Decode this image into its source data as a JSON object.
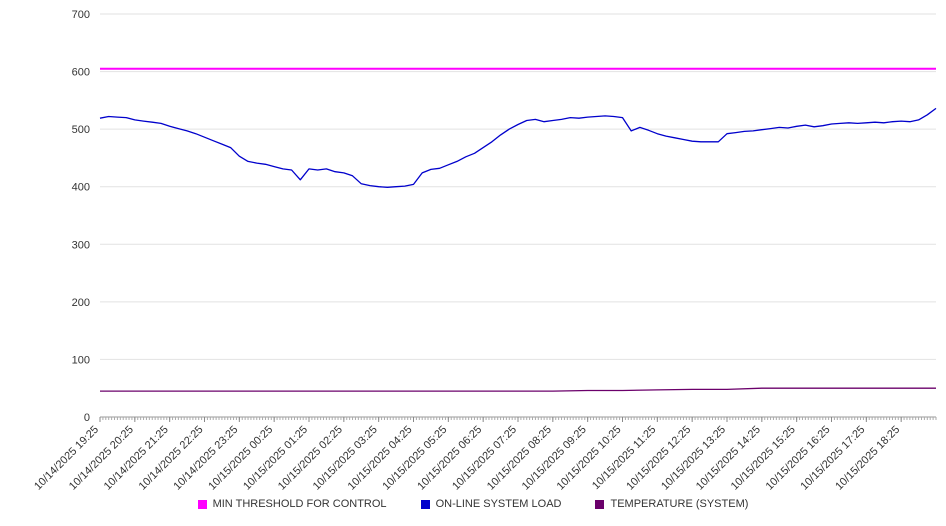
{
  "chart_data": {
    "type": "line",
    "title": "",
    "xlabel": "",
    "ylabel": "",
    "ylim": [
      0,
      700
    ],
    "yticks": [
      0,
      100,
      200,
      300,
      400,
      500,
      600,
      700
    ],
    "grid": true,
    "legend_position": "bottom",
    "x": [
      "10/14/2025 19:25",
      "10/14/2025 20:25",
      "10/14/2025 21:25",
      "10/14/2025 22:25",
      "10/14/2025 23:25",
      "10/15/2025 00:25",
      "10/15/2025 01:25",
      "10/15/2025 02:25",
      "10/15/2025 03:25",
      "10/15/2025 04:25",
      "10/15/2025 05:25",
      "10/15/2025 06:25",
      "10/15/2025 07:25",
      "10/15/2025 08:25",
      "10/15/2025 09:25",
      "10/15/2025 10:25",
      "10/15/2025 11:25",
      "10/15/2025 12:25",
      "10/15/2025 13:25",
      "10/15/2025 14:25",
      "10/15/2025 15:25",
      "10/15/2025 16:25",
      "10/15/2025 17:25",
      "10/15/2025 18:25"
    ],
    "series": [
      {
        "name": "MIN THRESHOLD FOR CONTROL",
        "color": "#ff00ff",
        "width": 2,
        "values": [
          605,
          605
        ]
      },
      {
        "name": "ON-LINE SYSTEM LOAD",
        "color": "#0000cc",
        "width": 1.3,
        "values": [
          519,
          522,
          521,
          520,
          516,
          514,
          512,
          510,
          505,
          501,
          497,
          492,
          486,
          480,
          474,
          468,
          453,
          444,
          441,
          439,
          435,
          431,
          429,
          412,
          431,
          429,
          431,
          426,
          424,
          419,
          405,
          402,
          400,
          399,
          400,
          401,
          404,
          424,
          430,
          432,
          438,
          444,
          452,
          458,
          468,
          478,
          490,
          500,
          508,
          515,
          517,
          513,
          515,
          517,
          520,
          519,
          521,
          522,
          523,
          522,
          520,
          497,
          503,
          498,
          492,
          488,
          485,
          482,
          479,
          478,
          478,
          478,
          492,
          494,
          496,
          497,
          499,
          501,
          503,
          502,
          505,
          507,
          504,
          506,
          509,
          510,
          511,
          510,
          511,
          512,
          511,
          513,
          514,
          513,
          516,
          525,
          536
        ]
      },
      {
        "name": "TEMPERATURE (SYSTEM)",
        "color": "#6b006b",
        "width": 1.3,
        "values": [
          45,
          45,
          45,
          45,
          45,
          45,
          45,
          45,
          45,
          45,
          45,
          45,
          45,
          45,
          46,
          46,
          47,
          48,
          48,
          50,
          50,
          50,
          50,
          50,
          50
        ]
      }
    ]
  }
}
